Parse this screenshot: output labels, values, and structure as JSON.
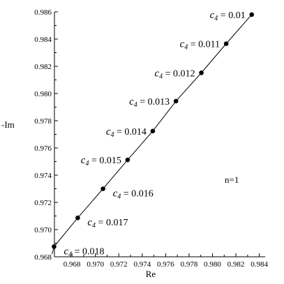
{
  "chart_data": {
    "type": "line",
    "title": "",
    "xlabel": "Re",
    "ylabel": "-Im",
    "xlim": [
      0.9665,
      0.9845
    ],
    "ylim": [
      0.968,
      0.986
    ],
    "xticks": [
      0.968,
      0.97,
      0.972,
      0.974,
      0.976,
      0.978,
      0.98,
      0.982,
      0.984
    ],
    "xtick_labels": [
      "0.968",
      "0.970",
      "0.972",
      "0.974",
      "0.976",
      "0.978",
      "0.980",
      "0.982",
      "0.984"
    ],
    "yticks": [
      0.968,
      0.97,
      0.972,
      0.974,
      0.976,
      0.978,
      0.98,
      0.982,
      0.984,
      0.986
    ],
    "ytick_labels": [
      "0.968",
      "0.970",
      "0.972",
      "0.974",
      "0.976",
      "0.978",
      "0.980",
      "0.982",
      "0.984",
      "0.986"
    ],
    "grid": false,
    "line_start": {
      "x": 0.9663,
      "y": 0.9682
    },
    "points": [
      {
        "x": 0.98335,
        "y": 0.9858,
        "sym": "c",
        "sub": "4",
        "value": "= 0.01",
        "side": "left"
      },
      {
        "x": 0.98117,
        "y": 0.98366,
        "sym": "c",
        "sub": "4",
        "value": "= 0.011",
        "side": "left"
      },
      {
        "x": 0.97905,
        "y": 0.98152,
        "sym": "c",
        "sub": "4",
        "value": "= 0.012",
        "side": "left"
      },
      {
        "x": 0.97688,
        "y": 0.97944,
        "sym": "c",
        "sub": "4",
        "value": "= 0.013",
        "side": "left"
      },
      {
        "x": 0.9749,
        "y": 0.97724,
        "sym": "c",
        "sub": "4",
        "value": "= 0.014",
        "side": "left"
      },
      {
        "x": 0.97275,
        "y": 0.97512,
        "sym": "c",
        "sub": "4",
        "value": "= 0.015",
        "side": "left"
      },
      {
        "x": 0.97065,
        "y": 0.973,
        "sym": "c",
        "sub": "4",
        "value": "= 0.016",
        "side": "right"
      },
      {
        "x": 0.96849,
        "y": 0.97086,
        "sym": "c",
        "sub": "4",
        "value": "= 0.017",
        "side": "right"
      },
      {
        "x": 0.96647,
        "y": 0.96875,
        "sym": "c",
        "sub": "4",
        "value": "= 0.018",
        "side": "right"
      }
    ],
    "annotation": "n=1"
  }
}
